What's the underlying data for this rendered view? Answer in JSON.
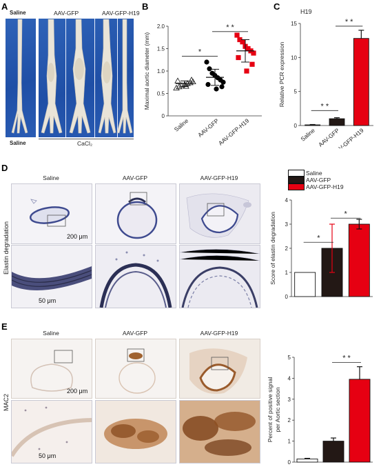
{
  "panels": {
    "A": {
      "letter": "A",
      "top_labels": [
        "Saline",
        "AAV-GFP",
        "AAV-GFP-H19"
      ],
      "bottom_labels": [
        "Saline",
        "CaCl₂"
      ]
    },
    "B": {
      "letter": "B"
    },
    "C": {
      "letter": "C",
      "title": "H19"
    },
    "D": {
      "letter": "D",
      "col_labels": [
        "Saline",
        "AAV-GFP",
        "AAV-GFP-H19"
      ],
      "row_label": "Elastin degradation",
      "scale_top": "200 μm",
      "scale_bottom": "50 μm",
      "legend": [
        {
          "name": "Saline",
          "color": "#ffffff"
        },
        {
          "name": "AAV-GFP",
          "color": "#231815"
        },
        {
          "name": "AAV-GFP-H19",
          "color": "#e60012"
        }
      ]
    },
    "E": {
      "letter": "E",
      "col_labels": [
        "Saline",
        "AAV-GFP",
        "AAV-GFP-H19"
      ],
      "row_label": "MAC2",
      "scale_top": "200 μm",
      "scale_bottom": "50 μm"
    }
  },
  "chart_data": [
    {
      "id": "B",
      "type": "scatter",
      "ylabel": "Maximal aortic diameter (mm)",
      "ylim": [
        0,
        2.0
      ],
      "yticks": [
        "0",
        "0.5",
        "1.0",
        "1.5",
        "2.0"
      ],
      "categories": [
        "Saline",
        "AAV-GFP",
        "AAV-GFP-H19"
      ],
      "series": [
        {
          "marker": "triangle-open",
          "color": "#222222",
          "values": [
            0.62,
            0.65,
            0.68,
            0.7,
            0.72,
            0.74,
            0.76,
            0.78,
            0.8,
            0.66
          ],
          "mean": 0.72,
          "sd": 0.06
        },
        {
          "marker": "circle",
          "color": "#000000",
          "values": [
            1.2,
            1.05,
            0.95,
            0.9,
            0.85,
            0.8,
            0.75,
            0.7,
            0.65,
            0.6
          ],
          "mean": 0.86,
          "sd": 0.18
        },
        {
          "marker": "square",
          "color": "#e60012",
          "values": [
            1.8,
            1.7,
            1.65,
            1.55,
            1.5,
            1.45,
            1.4,
            1.3,
            1.15,
            1.0
          ],
          "mean": 1.45,
          "sd": 0.25
        }
      ],
      "significance": [
        {
          "from": 0,
          "to": 1,
          "label": "*"
        },
        {
          "from": 1,
          "to": 2,
          "label": "* *"
        }
      ]
    },
    {
      "id": "C",
      "type": "bar",
      "title": "H19",
      "ylabel": "Relative PCR  expression",
      "ylim": [
        0,
        15
      ],
      "yticks": [
        "0",
        "5",
        "10",
        "15"
      ],
      "categories": [
        "Saline",
        "AAV-GFP",
        "AAV-GFP-H19"
      ],
      "values": [
        0.1,
        1.0,
        12.8
      ],
      "errors": [
        0.05,
        0.15,
        1.2
      ],
      "colors": [
        "#999999",
        "#231815",
        "#e60012"
      ],
      "significance": [
        {
          "from": 0,
          "to": 1,
          "label": "* *"
        },
        {
          "from": 1,
          "to": 2,
          "label": "* *"
        }
      ]
    },
    {
      "id": "D",
      "type": "bar",
      "ylabel": "Score of elastin degradation",
      "ylim": [
        0,
        4
      ],
      "yticks": [
        "0",
        "1",
        "2",
        "3",
        "4"
      ],
      "categories": [
        "Saline",
        "AAV-GFP",
        "AAV-GFP-H19"
      ],
      "values": [
        1.0,
        2.0,
        3.0
      ],
      "errors": [
        0,
        1.0,
        0.2
      ],
      "colors": [
        "#ffffff",
        "#231815",
        "#e60012"
      ],
      "significance": [
        {
          "from": 0,
          "to": 1,
          "label": "*"
        },
        {
          "from": 1,
          "to": 2,
          "label": "*"
        }
      ]
    },
    {
      "id": "E",
      "type": "bar",
      "ylabel": "Percent of positive signal per Aortic section",
      "ylabel_lines": [
        "Percent of positive signal",
        "per Aortic section"
      ],
      "ylim": [
        0,
        5
      ],
      "yticks": [
        "0",
        "1",
        "2",
        "3",
        "4",
        "5"
      ],
      "categories": [
        "Saline",
        "AAV-GFP",
        "AAV-GFP-H19"
      ],
      "values": [
        0.15,
        1.0,
        3.95
      ],
      "errors": [
        0.03,
        0.15,
        0.6
      ],
      "colors": [
        "#ffffff",
        "#231815",
        "#e60012"
      ],
      "significance": [
        {
          "from": 1,
          "to": 2,
          "label": "* *"
        }
      ]
    }
  ]
}
